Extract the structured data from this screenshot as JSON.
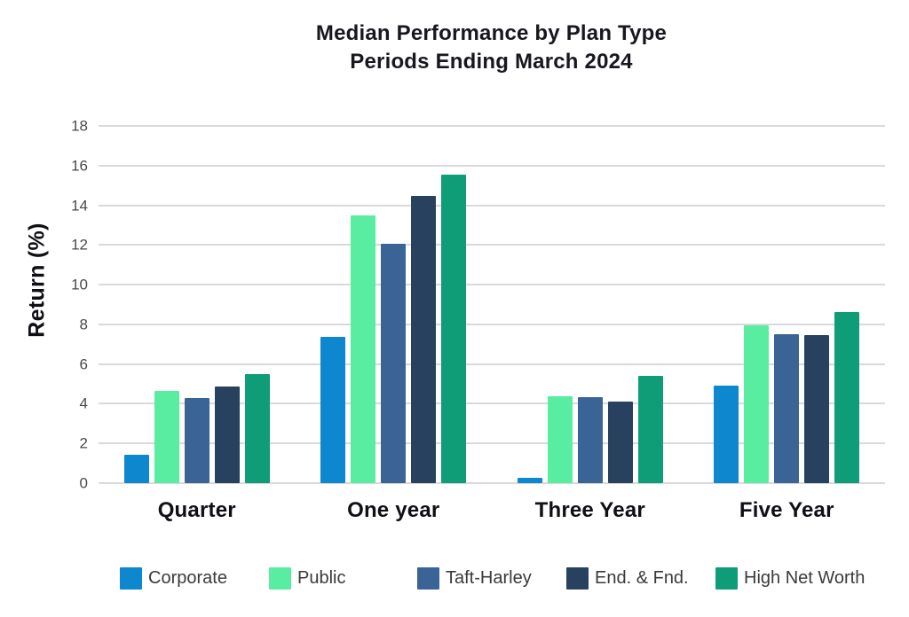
{
  "chart_data": {
    "type": "bar",
    "title": "Median Performance by Plan Type",
    "subtitle": "Periods Ending March 2024",
    "xlabel": "",
    "ylabel": "Return (%)",
    "ylim": [
      0,
      18
    ],
    "ytick_step": 2,
    "grid": "horizontal",
    "legend_position": "bottom",
    "categories": [
      "Quarter",
      "One year",
      "Three Year",
      "Five Year"
    ],
    "series": [
      {
        "name": "Corporate",
        "color": "#0d87cd",
        "values": [
          1.45,
          7.35,
          0.25,
          4.9
        ]
      },
      {
        "name": "Public",
        "color": "#58eda0",
        "values": [
          4.65,
          13.5,
          4.4,
          7.95
        ]
      },
      {
        "name": "Taft-Harley",
        "color": "#3a6496",
        "values": [
          4.3,
          12.05,
          4.35,
          7.5
        ]
      },
      {
        "name": "End. & Fnd.",
        "color": "#27415e",
        "values": [
          4.85,
          14.45,
          4.1,
          7.45
        ]
      },
      {
        "name": "High Net Worth",
        "color": "#0f9d78",
        "values": [
          5.5,
          15.55,
          5.4,
          8.6
        ]
      }
    ],
    "colors": {
      "background": "#ffffff",
      "gridline": "#d9d9d9",
      "title_text": "#17171f",
      "axis_tick_text": "#4a4a4a",
      "legend_text": "#3a3a3a"
    }
  }
}
